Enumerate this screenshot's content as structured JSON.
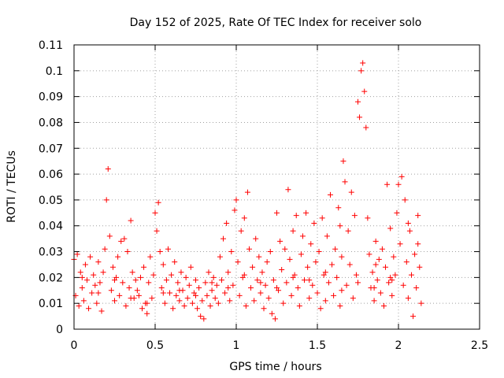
{
  "chart_data": {
    "type": "scatter",
    "title": "Day 152 of 2025, Rate Of TEC Index for receiver solo",
    "xlabel": "GPS time / hours",
    "ylabel": "ROTI / TECUs",
    "xlim": [
      0,
      2.5
    ],
    "ylim": [
      0,
      0.11
    ],
    "xticks": [
      0,
      0.5,
      1,
      1.5,
      2,
      2.5
    ],
    "xtick_labels": [
      "0",
      "0.5",
      "1",
      "1.5",
      "2",
      "2.5"
    ],
    "yticks": [
      0,
      0.01,
      0.02,
      0.03,
      0.04,
      0.05,
      0.06,
      0.07,
      0.08,
      0.09,
      0.1,
      0.11
    ],
    "ytick_labels": [
      "0",
      "0.01",
      "0.02",
      "0.03",
      "0.04",
      "0.05",
      "0.06",
      "0.07",
      "0.08",
      "0.09",
      "0.1",
      "0.11"
    ],
    "grid": true,
    "marker": "+",
    "series_color": "#ff0000",
    "series": [
      {
        "name": "ROTI",
        "points": [
          [
            0.0,
            0.027
          ],
          [
            0.01,
            0.013
          ],
          [
            0.02,
            0.029
          ],
          [
            0.03,
            0.009
          ],
          [
            0.04,
            0.022
          ],
          [
            0.05,
            0.016
          ],
          [
            0.06,
            0.011
          ],
          [
            0.07,
            0.025
          ],
          [
            0.08,
            0.019
          ],
          [
            0.09,
            0.008
          ],
          [
            0.1,
            0.028
          ],
          [
            0.11,
            0.014
          ],
          [
            0.12,
            0.021
          ],
          [
            0.13,
            0.017
          ],
          [
            0.14,
            0.01
          ],
          [
            0.15,
            0.026
          ],
          [
            0.16,
            0.018
          ],
          [
            0.17,
            0.007
          ],
          [
            0.18,
            0.022
          ],
          [
            0.19,
            0.031
          ],
          [
            0.2,
            0.05
          ],
          [
            0.21,
            0.062
          ],
          [
            0.22,
            0.036
          ],
          [
            0.23,
            0.015
          ],
          [
            0.24,
            0.024
          ],
          [
            0.25,
            0.011
          ],
          [
            0.26,
            0.02
          ],
          [
            0.27,
            0.028
          ],
          [
            0.28,
            0.013
          ],
          [
            0.29,
            0.034
          ],
          [
            0.3,
            0.018
          ],
          [
            0.31,
            0.035
          ],
          [
            0.32,
            0.009
          ],
          [
            0.33,
            0.03
          ],
          [
            0.34,
            0.016
          ],
          [
            0.35,
            0.042
          ],
          [
            0.36,
            0.022
          ],
          [
            0.37,
            0.012
          ],
          [
            0.38,
            0.019
          ],
          [
            0.39,
            0.015
          ],
          [
            0.4,
            0.013
          ],
          [
            0.41,
            0.02
          ],
          [
            0.42,
            0.008
          ],
          [
            0.43,
            0.024
          ],
          [
            0.44,
            0.01
          ],
          [
            0.45,
            0.006
          ],
          [
            0.46,
            0.018
          ],
          [
            0.47,
            0.028
          ],
          [
            0.48,
            0.012
          ],
          [
            0.49,
            0.021
          ],
          [
            0.5,
            0.045
          ],
          [
            0.51,
            0.038
          ],
          [
            0.52,
            0.049
          ],
          [
            0.53,
            0.03
          ],
          [
            0.54,
            0.016
          ],
          [
            0.55,
            0.025
          ],
          [
            0.56,
            0.01
          ],
          [
            0.57,
            0.019
          ],
          [
            0.58,
            0.031
          ],
          [
            0.59,
            0.014
          ],
          [
            0.6,
            0.021
          ],
          [
            0.61,
            0.008
          ],
          [
            0.62,
            0.026
          ],
          [
            0.63,
            0.013
          ],
          [
            0.64,
            0.018
          ],
          [
            0.65,
            0.011
          ],
          [
            0.66,
            0.022
          ],
          [
            0.67,
            0.015
          ],
          [
            0.68,
            0.009
          ],
          [
            0.69,
            0.02
          ],
          [
            0.7,
            0.012
          ],
          [
            0.71,
            0.017
          ],
          [
            0.72,
            0.024
          ],
          [
            0.73,
            0.01
          ],
          [
            0.74,
            0.014
          ],
          [
            0.75,
            0.019
          ],
          [
            0.76,
            0.008
          ],
          [
            0.77,
            0.016
          ],
          [
            0.78,
            0.005
          ],
          [
            0.79,
            0.011
          ],
          [
            0.8,
            0.004
          ],
          [
            0.81,
            0.018
          ],
          [
            0.82,
            0.013
          ],
          [
            0.83,
            0.022
          ],
          [
            0.84,
            0.009
          ],
          [
            0.85,
            0.015
          ],
          [
            0.86,
            0.02
          ],
          [
            0.87,
            0.012
          ],
          [
            0.88,
            0.017
          ],
          [
            0.89,
            0.01
          ],
          [
            0.9,
            0.028
          ],
          [
            0.91,
            0.019
          ],
          [
            0.92,
            0.035
          ],
          [
            0.93,
            0.014
          ],
          [
            0.94,
            0.041
          ],
          [
            0.95,
            0.022
          ],
          [
            0.96,
            0.011
          ],
          [
            0.97,
            0.03
          ],
          [
            0.98,
            0.017
          ],
          [
            0.99,
            0.046
          ],
          [
            1.0,
            0.05
          ],
          [
            1.01,
            0.026
          ],
          [
            1.02,
            0.013
          ],
          [
            1.03,
            0.038
          ],
          [
            1.04,
            0.02
          ],
          [
            1.05,
            0.043
          ],
          [
            1.06,
            0.009
          ],
          [
            1.07,
            0.053
          ],
          [
            1.08,
            0.031
          ],
          [
            1.09,
            0.016
          ],
          [
            1.1,
            0.024
          ],
          [
            1.11,
            0.011
          ],
          [
            1.12,
            0.035
          ],
          [
            1.13,
            0.019
          ],
          [
            1.14,
            0.028
          ],
          [
            1.15,
            0.014
          ],
          [
            1.16,
            0.022
          ],
          [
            1.17,
            0.008
          ],
          [
            1.18,
            0.017
          ],
          [
            1.19,
            0.026
          ],
          [
            1.2,
            0.012
          ],
          [
            1.21,
            0.03
          ],
          [
            1.22,
            0.006
          ],
          [
            1.23,
            0.019
          ],
          [
            1.24,
            0.004
          ],
          [
            1.25,
            0.045
          ],
          [
            1.26,
            0.015
          ],
          [
            1.27,
            0.034
          ],
          [
            1.28,
            0.023
          ],
          [
            1.29,
            0.01
          ],
          [
            1.3,
            0.031
          ],
          [
            1.31,
            0.018
          ],
          [
            1.32,
            0.054
          ],
          [
            1.33,
            0.027
          ],
          [
            1.34,
            0.013
          ],
          [
            1.35,
            0.038
          ],
          [
            1.36,
            0.021
          ],
          [
            1.37,
            0.044
          ],
          [
            1.38,
            0.016
          ],
          [
            1.39,
            0.009
          ],
          [
            1.4,
            0.029
          ],
          [
            1.41,
            0.036
          ],
          [
            1.42,
            0.019
          ],
          [
            1.43,
            0.045
          ],
          [
            1.44,
            0.024
          ],
          [
            1.45,
            0.012
          ],
          [
            1.46,
            0.033
          ],
          [
            1.47,
            0.017
          ],
          [
            1.48,
            0.041
          ],
          [
            1.49,
            0.026
          ],
          [
            1.5,
            0.014
          ],
          [
            1.51,
            0.03
          ],
          [
            1.52,
            0.008
          ],
          [
            1.53,
            0.043
          ],
          [
            1.54,
            0.021
          ],
          [
            1.55,
            0.011
          ],
          [
            1.56,
            0.036
          ],
          [
            1.57,
            0.018
          ],
          [
            1.58,
            0.052
          ],
          [
            1.59,
            0.025
          ],
          [
            1.6,
            0.013
          ],
          [
            1.61,
            0.031
          ],
          [
            1.62,
            0.02
          ],
          [
            1.63,
            0.047
          ],
          [
            1.64,
            0.009
          ],
          [
            1.65,
            0.028
          ],
          [
            1.66,
            0.065
          ],
          [
            1.67,
            0.057
          ],
          [
            1.68,
            0.017
          ],
          [
            1.69,
            0.038
          ],
          [
            1.7,
            0.025
          ],
          [
            1.71,
            0.053
          ],
          [
            1.72,
            0.012
          ],
          [
            1.73,
            0.044
          ],
          [
            1.74,
            0.021
          ],
          [
            1.75,
            0.088
          ],
          [
            1.76,
            0.082
          ],
          [
            1.77,
            0.1
          ],
          [
            1.78,
            0.103
          ],
          [
            1.79,
            0.092
          ],
          [
            1.8,
            0.078
          ],
          [
            1.81,
            0.043
          ],
          [
            1.82,
            0.029
          ],
          [
            1.83,
            0.016
          ],
          [
            1.84,
            0.022
          ],
          [
            1.85,
            0.011
          ],
          [
            1.86,
            0.034
          ],
          [
            1.87,
            0.019
          ],
          [
            1.88,
            0.027
          ],
          [
            1.89,
            0.014
          ],
          [
            1.9,
            0.031
          ],
          [
            1.91,
            0.009
          ],
          [
            1.92,
            0.024
          ],
          [
            1.93,
            0.056
          ],
          [
            1.94,
            0.018
          ],
          [
            1.95,
            0.039
          ],
          [
            1.96,
            0.013
          ],
          [
            1.97,
            0.028
          ],
          [
            1.98,
            0.021
          ],
          [
            1.99,
            0.045
          ],
          [
            2.0,
            0.056
          ],
          [
            2.01,
            0.033
          ],
          [
            2.02,
            0.059
          ],
          [
            2.03,
            0.017
          ],
          [
            2.04,
            0.05
          ],
          [
            2.05,
            0.026
          ],
          [
            2.06,
            0.012
          ],
          [
            2.07,
            0.038
          ],
          [
            2.08,
            0.021
          ],
          [
            2.09,
            0.005
          ],
          [
            2.1,
            0.029
          ],
          [
            2.11,
            0.016
          ],
          [
            2.12,
            0.044
          ],
          [
            2.13,
            0.024
          ],
          [
            2.14,
            0.01
          ],
          [
            2.12,
            0.033
          ],
          [
            2.06,
            0.041
          ],
          [
            1.96,
            0.019
          ],
          [
            1.86,
            0.025
          ],
          [
            1.64,
            0.04
          ],
          [
            0.05,
            0.02
          ],
          [
            0.15,
            0.014
          ],
          [
            0.25,
            0.019
          ],
          [
            0.35,
            0.012
          ],
          [
            0.45,
            0.01
          ],
          [
            0.55,
            0.014
          ],
          [
            0.65,
            0.015
          ],
          [
            0.75,
            0.013
          ],
          [
            0.85,
            0.018
          ],
          [
            0.95,
            0.016
          ],
          [
            1.05,
            0.021
          ],
          [
            1.15,
            0.018
          ],
          [
            1.25,
            0.016
          ],
          [
            1.35,
            0.02
          ],
          [
            1.45,
            0.019
          ],
          [
            1.55,
            0.022
          ],
          [
            1.65,
            0.015
          ],
          [
            1.75,
            0.018
          ],
          [
            1.85,
            0.016
          ],
          [
            1.95,
            0.02
          ]
        ]
      }
    ]
  }
}
